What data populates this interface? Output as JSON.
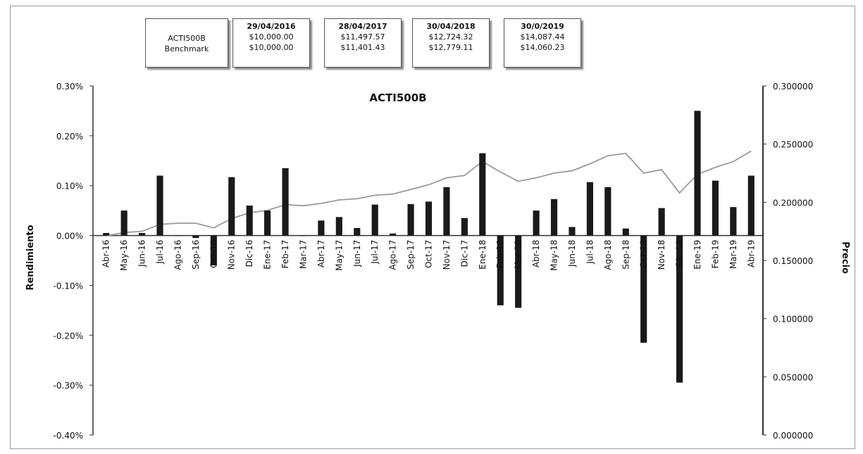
{
  "summary_table": {
    "row_labels": [
      "ACTI500B",
      "Benchmark"
    ],
    "columns": [
      {
        "date": "29/04/2016",
        "fund": "$10,000.00",
        "benchmark": "$10,000.00"
      },
      {
        "date": "28/04/2017",
        "fund": "$11,497.57",
        "benchmark": "$11,401.43"
      },
      {
        "date": "30/04/2018",
        "fund": "$12,724.32",
        "benchmark": "$12,779.11"
      },
      {
        "date": "30/0/2019",
        "fund": "$14,087.44",
        "benchmark": "$14,060.23"
      }
    ]
  },
  "chart_data": {
    "type": "bar",
    "title": "ACTI500B",
    "ylabel": "Rendimiento",
    "y2label": "Precio",
    "ylim": [
      -0.4,
      0.3
    ],
    "y2lim": [
      0.0,
      0.3
    ],
    "yticks": [
      "0.30%",
      "0.20%",
      "0.10%",
      "0.00%",
      "-0.10%",
      "-0.20%",
      "-0.30%",
      "-0.40%"
    ],
    "y2ticks": [
      "0.300000",
      "0.250000",
      "0.200000",
      "0.150000",
      "0.100000",
      "0.050000",
      "0.000000"
    ],
    "categories": [
      "Abr-16",
      "May-16",
      "Jun-16",
      "Jul-16",
      "Ago-16",
      "Sep-16",
      "Oct-16",
      "Nov-16",
      "Dic-16",
      "Ene-17",
      "Feb-17",
      "Mar-17",
      "Abr-17",
      "May-17",
      "Jun-17",
      "Jul-17",
      "Ago-17",
      "Sep-17",
      "Oct-17",
      "Nov-17",
      "Dic-17",
      "Ene-18",
      "Feb-18",
      "Mar-18",
      "Abr-18",
      "May-18",
      "Jun-18",
      "Jul-18",
      "Ago-18",
      "Sep-18",
      "Oct-18",
      "Nov-18",
      "Dic-18",
      "Ene-19",
      "Feb-19",
      "Mar-19",
      "Abr-19"
    ],
    "series": [
      {
        "kind": "bar",
        "axis": "left",
        "values": [
          0.005,
          0.05,
          0.005,
          0.12,
          0.0,
          -0.005,
          -0.06,
          0.117,
          0.06,
          0.05,
          0.135,
          0.0,
          0.03,
          0.037,
          0.015,
          0.062,
          0.004,
          0.063,
          0.068,
          0.097,
          0.035,
          0.165,
          -0.14,
          -0.145,
          0.05,
          0.073,
          0.017,
          0.107,
          0.097,
          0.014,
          -0.215,
          0.055,
          -0.295,
          0.25,
          0.11,
          0.057,
          0.12
        ]
      },
      {
        "kind": "line",
        "axis": "right",
        "values": [
          0.171,
          0.174,
          0.175,
          0.181,
          0.182,
          0.182,
          0.178,
          0.186,
          0.191,
          0.193,
          0.198,
          0.197,
          0.199,
          0.202,
          0.203,
          0.206,
          0.207,
          0.211,
          0.215,
          0.221,
          0.223,
          0.235,
          0.226,
          0.218,
          0.221,
          0.225,
          0.227,
          0.233,
          0.24,
          0.242,
          0.225,
          0.228,
          0.208,
          0.224,
          0.23,
          0.235,
          0.244
        ]
      }
    ]
  },
  "colors": {
    "bar": "#1a1a1a",
    "line": "#9a9a9a",
    "axis": "#333333"
  }
}
